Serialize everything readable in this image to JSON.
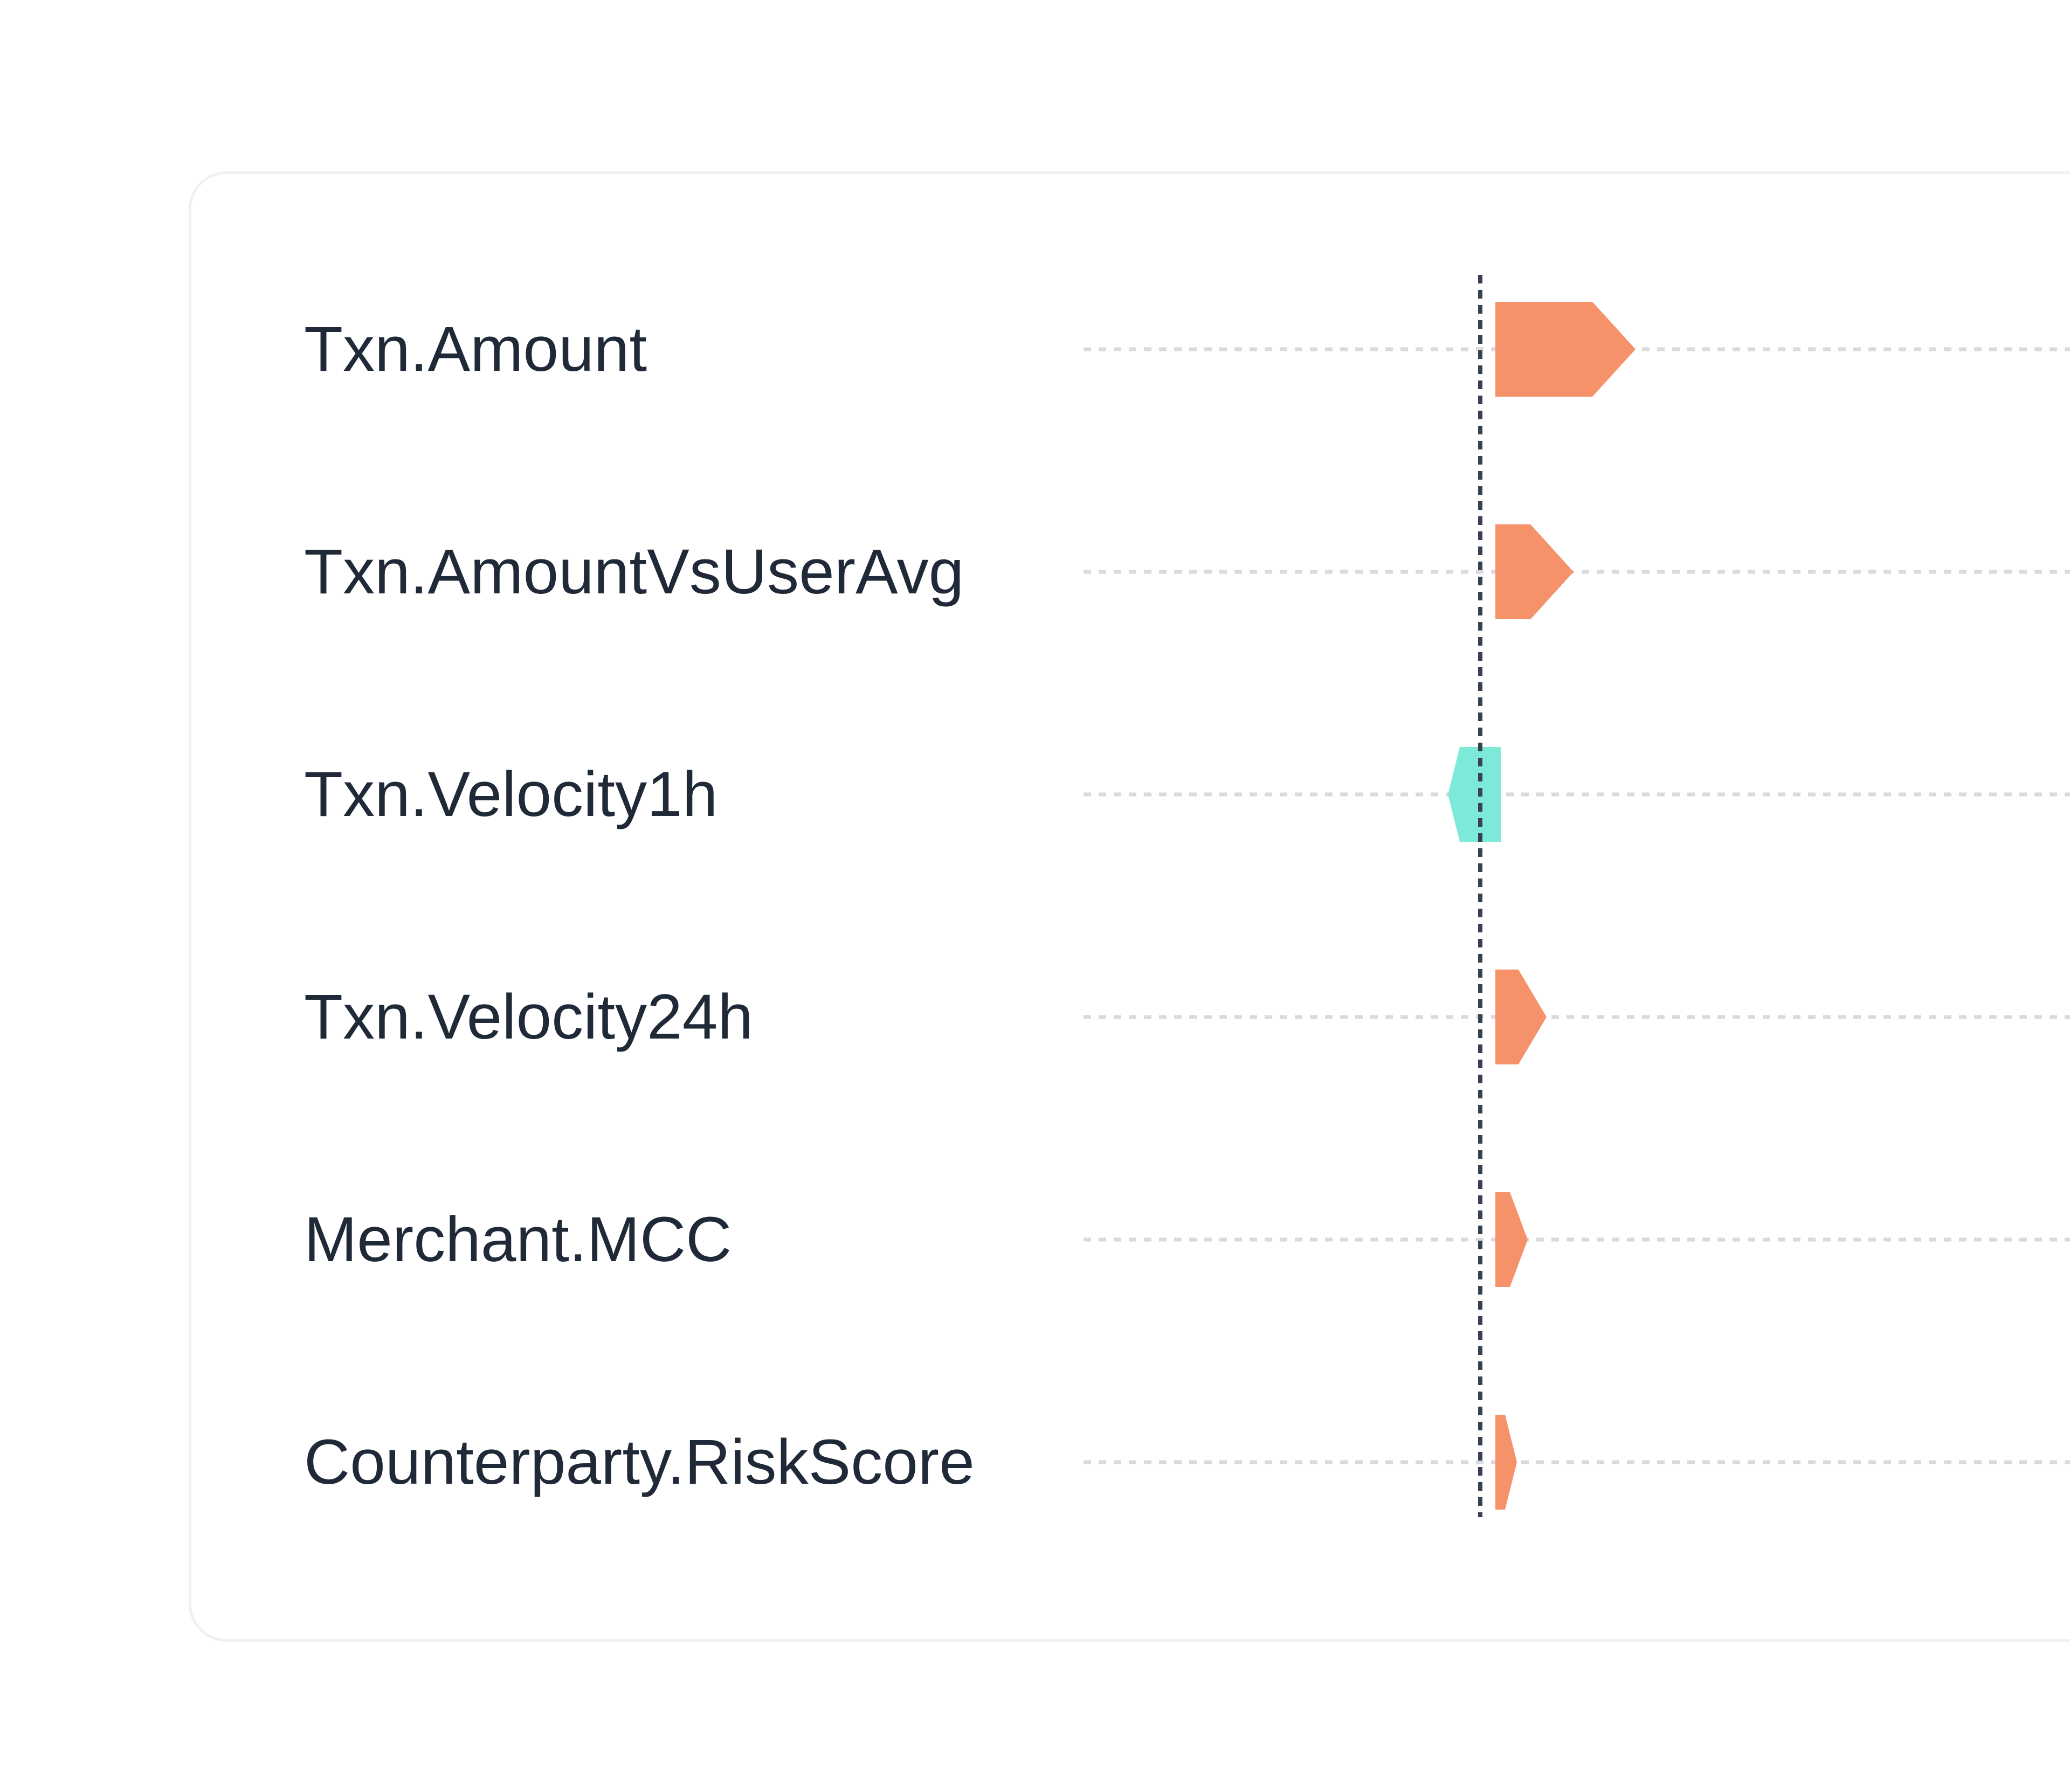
{
  "chart_data": {
    "type": "bar",
    "orientation": "horizontal",
    "categories": [
      "Txn.Amount",
      "Txn.AmountVsUserAvg",
      "Txn.Velocity1h",
      "Txn.Velocity24h",
      "Merchant.MCC",
      "Counterparty.RiskScore"
    ],
    "values": [
      0.26,
      0.145,
      -0.04,
      0.095,
      0.06,
      0.04
    ],
    "baseline": 0,
    "colors": {
      "positive": "#f6926a",
      "negative": "#7de9d8",
      "baseline": "#374151",
      "guide": "#d8dadd"
    },
    "grid": false,
    "legend": "none"
  }
}
